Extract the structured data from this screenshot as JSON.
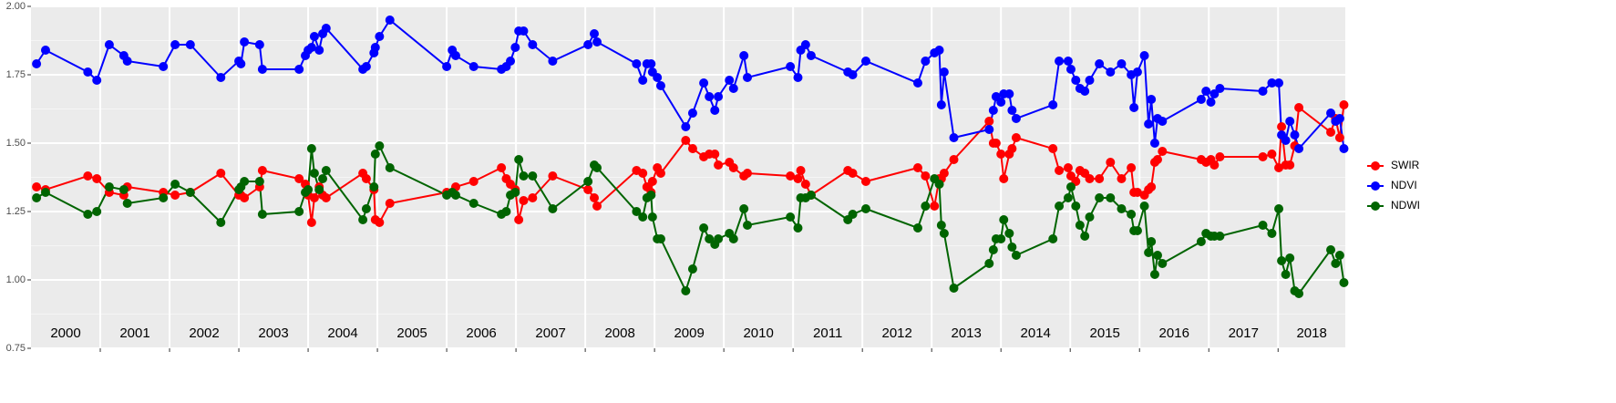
{
  "chart_data": {
    "type": "line",
    "x": [
      2000.08,
      2000.21,
      2000.82,
      2000.95,
      2001.13,
      2001.34,
      2001.39,
      2001.91,
      2002.08,
      2002.3,
      2002.74,
      2003.0,
      2003.03,
      2003.08,
      2003.3,
      2003.34,
      2003.87,
      2003.96,
      2004.0,
      2004.05,
      2004.09,
      2004.16,
      2004.21,
      2004.26,
      2004.79,
      2004.84,
      2004.95,
      2004.97,
      2005.03,
      2005.18,
      2006.0,
      2006.08,
      2006.13,
      2006.39,
      2006.79,
      2006.86,
      2006.92,
      2006.99,
      2007.04,
      2007.11,
      2007.24,
      2007.53,
      2008.04,
      2008.13,
      2008.17,
      2008.74,
      2008.83,
      2008.89,
      2008.95,
      2008.97,
      2009.04,
      2009.09,
      2009.45,
      2009.55,
      2009.71,
      2009.79,
      2009.87,
      2009.92,
      2010.08,
      2010.14,
      2010.29,
      2010.34,
      2010.96,
      2011.07,
      2011.11,
      2011.18,
      2011.26,
      2011.79,
      2011.86,
      2012.05,
      2012.8,
      2012.91,
      2013.04,
      2013.11,
      2013.14,
      2013.18,
      2013.32,
      2013.83,
      2013.89,
      2013.93,
      2014.0,
      2014.04,
      2014.12,
      2014.16,
      2014.22,
      2014.75,
      2014.84,
      2014.97,
      2015.01,
      2015.08,
      2015.14,
      2015.21,
      2015.28,
      2015.42,
      2015.58,
      2015.74,
      2015.88,
      2015.92,
      2015.97,
      2016.07,
      2016.13,
      2016.17,
      2016.22,
      2016.26,
      2016.33,
      2016.89,
      2016.96,
      2017.03,
      2017.08,
      2017.16,
      2017.78,
      2017.91,
      2018.01,
      2018.05,
      2018.11,
      2018.17,
      2018.24,
      2018.3,
      2018.76,
      2018.83,
      2018.89,
      2018.95
    ],
    "series": [
      {
        "name": "SWIR",
        "color": "#ff0000",
        "values": [
          1.34,
          1.33,
          1.38,
          1.37,
          1.32,
          1.31,
          1.34,
          1.32,
          1.31,
          1.32,
          1.39,
          1.31,
          1.31,
          1.3,
          1.34,
          1.4,
          1.37,
          1.35,
          1.31,
          1.21,
          1.3,
          1.34,
          1.31,
          1.3,
          1.39,
          1.37,
          1.33,
          1.22,
          1.21,
          1.28,
          1.32,
          1.32,
          1.34,
          1.36,
          1.41,
          1.37,
          1.35,
          1.33,
          1.22,
          1.29,
          1.3,
          1.38,
          1.33,
          1.3,
          1.27,
          1.4,
          1.39,
          1.34,
          1.32,
          1.36,
          1.41,
          1.39,
          1.51,
          1.48,
          1.45,
          1.46,
          1.46,
          1.42,
          1.43,
          1.41,
          1.38,
          1.39,
          1.38,
          1.37,
          1.4,
          1.35,
          1.31,
          1.4,
          1.39,
          1.36,
          1.41,
          1.38,
          1.27,
          1.37,
          1.37,
          1.39,
          1.44,
          1.58,
          1.5,
          1.5,
          1.46,
          1.37,
          1.46,
          1.48,
          1.52,
          1.48,
          1.4,
          1.41,
          1.38,
          1.36,
          1.4,
          1.39,
          1.37,
          1.37,
          1.43,
          1.37,
          1.41,
          1.32,
          1.32,
          1.31,
          1.33,
          1.34,
          1.43,
          1.44,
          1.47,
          1.44,
          1.43,
          1.44,
          1.42,
          1.45,
          1.45,
          1.46,
          1.41,
          1.56,
          1.42,
          1.42,
          1.49,
          1.63,
          1.54,
          1.59,
          1.52,
          1.64
        ]
      },
      {
        "name": "NDVI",
        "color": "#0000ff",
        "values": [
          1.79,
          1.84,
          1.76,
          1.73,
          1.86,
          1.82,
          1.8,
          1.78,
          1.86,
          1.86,
          1.74,
          1.8,
          1.79,
          1.87,
          1.86,
          1.77,
          1.77,
          1.82,
          1.84,
          1.85,
          1.89,
          1.84,
          1.9,
          1.92,
          1.77,
          1.78,
          1.83,
          1.85,
          1.89,
          1.95,
          1.78,
          1.84,
          1.82,
          1.78,
          1.77,
          1.78,
          1.8,
          1.85,
          1.91,
          1.91,
          1.86,
          1.8,
          1.86,
          1.9,
          1.87,
          1.79,
          1.73,
          1.79,
          1.79,
          1.76,
          1.74,
          1.71,
          1.56,
          1.61,
          1.72,
          1.67,
          1.62,
          1.67,
          1.73,
          1.7,
          1.82,
          1.74,
          1.78,
          1.74,
          1.84,
          1.86,
          1.82,
          1.76,
          1.75,
          1.8,
          1.72,
          1.8,
          1.83,
          1.84,
          1.64,
          1.76,
          1.52,
          1.55,
          1.62,
          1.67,
          1.65,
          1.68,
          1.68,
          1.62,
          1.59,
          1.64,
          1.8,
          1.8,
          1.77,
          1.73,
          1.7,
          1.69,
          1.73,
          1.79,
          1.76,
          1.79,
          1.75,
          1.63,
          1.76,
          1.82,
          1.57,
          1.66,
          1.5,
          1.59,
          1.58,
          1.66,
          1.69,
          1.65,
          1.68,
          1.7,
          1.69,
          1.72,
          1.72,
          1.53,
          1.51,
          1.58,
          1.53,
          1.48,
          1.61,
          1.58,
          1.59,
          1.48
        ]
      },
      {
        "name": "NDWI",
        "color": "#006400",
        "values": [
          1.3,
          1.32,
          1.24,
          1.25,
          1.34,
          1.33,
          1.28,
          1.3,
          1.35,
          1.32,
          1.21,
          1.33,
          1.34,
          1.36,
          1.36,
          1.24,
          1.25,
          1.32,
          1.33,
          1.48,
          1.39,
          1.33,
          1.37,
          1.4,
          1.22,
          1.26,
          1.34,
          1.46,
          1.49,
          1.41,
          1.31,
          1.32,
          1.31,
          1.28,
          1.24,
          1.25,
          1.31,
          1.32,
          1.44,
          1.38,
          1.38,
          1.26,
          1.36,
          1.42,
          1.41,
          1.25,
          1.23,
          1.3,
          1.31,
          1.23,
          1.15,
          1.15,
          0.96,
          1.04,
          1.19,
          1.15,
          1.13,
          1.15,
          1.17,
          1.15,
          1.26,
          1.2,
          1.23,
          1.19,
          1.3,
          1.3,
          1.31,
          1.22,
          1.24,
          1.26,
          1.19,
          1.27,
          1.37,
          1.35,
          1.2,
          1.17,
          0.97,
          1.06,
          1.11,
          1.15,
          1.15,
          1.22,
          1.17,
          1.12,
          1.09,
          1.15,
          1.27,
          1.3,
          1.34,
          1.27,
          1.2,
          1.16,
          1.23,
          1.3,
          1.3,
          1.26,
          1.24,
          1.18,
          1.18,
          1.27,
          1.1,
          1.14,
          1.02,
          1.09,
          1.06,
          1.14,
          1.17,
          1.16,
          1.16,
          1.16,
          1.2,
          1.17,
          1.26,
          1.07,
          1.02,
          1.08,
          0.96,
          0.95,
          1.11,
          1.06,
          1.09,
          0.99
        ]
      }
    ],
    "year_labels": [
      "2000",
      "2001",
      "2002",
      "2003",
      "2004",
      "2005",
      "2006",
      "2007",
      "2008",
      "2009",
      "2010",
      "2011",
      "2012",
      "2013",
      "2014",
      "2015",
      "2016",
      "2017",
      "2018"
    ],
    "xlim": [
      2000,
      2018.97
    ],
    "xticks": [
      2001,
      2002,
      2003,
      2004,
      2005,
      2006,
      2007,
      2008,
      2009,
      2010,
      2011,
      2012,
      2013,
      2014,
      2015,
      2016,
      2017,
      2018
    ],
    "ylim": [
      0.75,
      2.0
    ],
    "yticks": [
      0.75,
      {
        "value": 1,
        "label": "1.00"
      },
      1.25,
      {
        "value": 1.5,
        "label": "1.50"
      },
      1.75,
      {
        "value": 2,
        "label": "2.00"
      }
    ],
    "grid": true,
    "legend": "right"
  }
}
